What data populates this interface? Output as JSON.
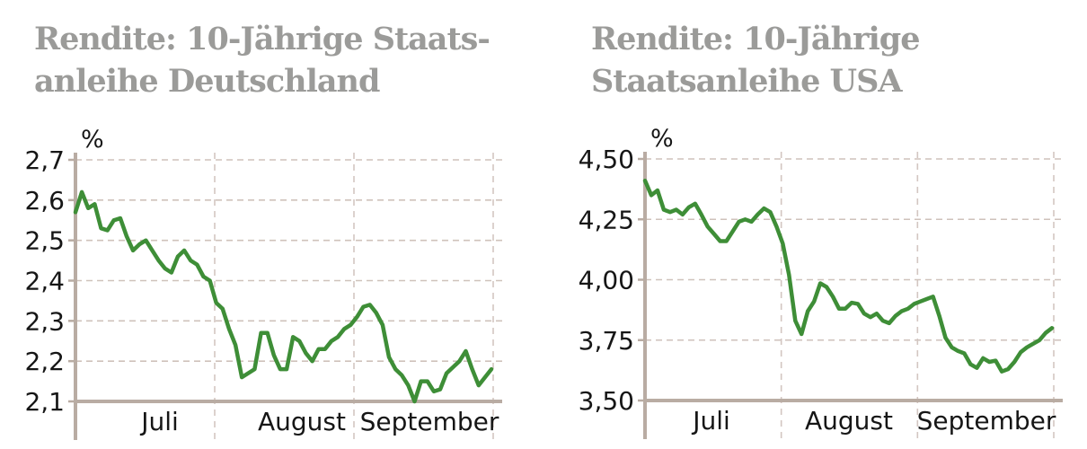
{
  "colors": {
    "line": "#3e8e37",
    "axis": "#b9aca3",
    "grid": "#cfc2bb",
    "grid_vertical": "#d3c6c1",
    "title_text": "#9b9b99",
    "label_text": "#161616",
    "background": "#ffffff"
  },
  "chart_data": [
    {
      "id": "germany",
      "type": "line",
      "title": "Rendite: 10-Jährige Staatsanleihe Deutschland",
      "title_lines": [
        "Rendite: 10-Jährige Staats-",
        "anleihe Deutschland"
      ],
      "unit": "%",
      "x_categories": [
        "Juli",
        "August",
        "September"
      ],
      "y_ticks": [
        {
          "label": "2,7",
          "value": 2.7
        },
        {
          "label": "2,6",
          "value": 2.6
        },
        {
          "label": "2,5",
          "value": 2.5
        },
        {
          "label": "2,4",
          "value": 2.4
        },
        {
          "label": "2,3",
          "value": 2.3
        },
        {
          "label": "2,2",
          "value": 2.2
        },
        {
          "label": "2,1",
          "value": 2.1
        }
      ],
      "ylim": [
        2.1,
        2.7
      ],
      "grid": "dashed",
      "legend": "none",
      "series": [
        {
          "name": "Rendite 10-jährige Staatsanleihe Deutschland",
          "values": [
            2.57,
            2.62,
            2.58,
            2.59,
            2.53,
            2.525,
            2.55,
            2.555,
            2.51,
            2.475,
            2.49,
            2.5,
            2.475,
            2.45,
            2.43,
            2.42,
            2.46,
            2.475,
            2.45,
            2.44,
            2.41,
            2.4,
            2.345,
            2.33,
            2.28,
            2.24,
            2.16,
            2.17,
            2.18,
            2.27,
            2.27,
            2.215,
            2.18,
            2.18,
            2.26,
            2.25,
            2.22,
            2.2,
            2.23,
            2.23,
            2.25,
            2.26,
            2.28,
            2.29,
            2.31,
            2.335,
            2.34,
            2.32,
            2.29,
            2.21,
            2.18,
            2.165,
            2.14,
            2.1,
            2.15,
            2.15,
            2.125,
            2.13,
            2.17,
            2.185,
            2.2,
            2.225,
            2.18,
            2.14,
            2.16,
            2.18
          ]
        }
      ]
    },
    {
      "id": "usa",
      "type": "line",
      "title": "Rendite: 10-Jährige Staatsanleihe USA",
      "title_lines": [
        "Rendite: 10-Jährige",
        "Staatsanleihe USA"
      ],
      "unit": "%",
      "x_categories": [
        "Juli",
        "August",
        "September"
      ],
      "y_ticks": [
        {
          "label": "4,50",
          "value": 4.5
        },
        {
          "label": "4,25",
          "value": 4.25
        },
        {
          "label": "4,00",
          "value": 4.0
        },
        {
          "label": "3,75",
          "value": 3.75
        },
        {
          "label": "3,50",
          "value": 3.5
        }
      ],
      "ylim": [
        3.5,
        4.5
      ],
      "grid": "dashed",
      "legend": "none",
      "series": [
        {
          "name": "Rendite 10-jährige Staatsanleihe USA",
          "values": [
            4.41,
            4.35,
            4.37,
            4.29,
            4.28,
            4.29,
            4.27,
            4.3,
            4.315,
            4.27,
            4.22,
            4.19,
            4.16,
            4.16,
            4.2,
            4.24,
            4.25,
            4.24,
            4.27,
            4.295,
            4.28,
            4.22,
            4.15,
            4.02,
            3.83,
            3.775,
            3.87,
            3.91,
            3.985,
            3.97,
            3.93,
            3.88,
            3.88,
            3.905,
            3.9,
            3.86,
            3.845,
            3.86,
            3.83,
            3.82,
            3.85,
            3.87,
            3.88,
            3.9,
            3.91,
            3.92,
            3.93,
            3.85,
            3.76,
            3.72,
            3.705,
            3.695,
            3.65,
            3.635,
            3.675,
            3.66,
            3.665,
            3.62,
            3.63,
            3.66,
            3.7,
            3.72,
            3.735,
            3.75,
            3.78,
            3.8
          ]
        }
      ]
    }
  ]
}
